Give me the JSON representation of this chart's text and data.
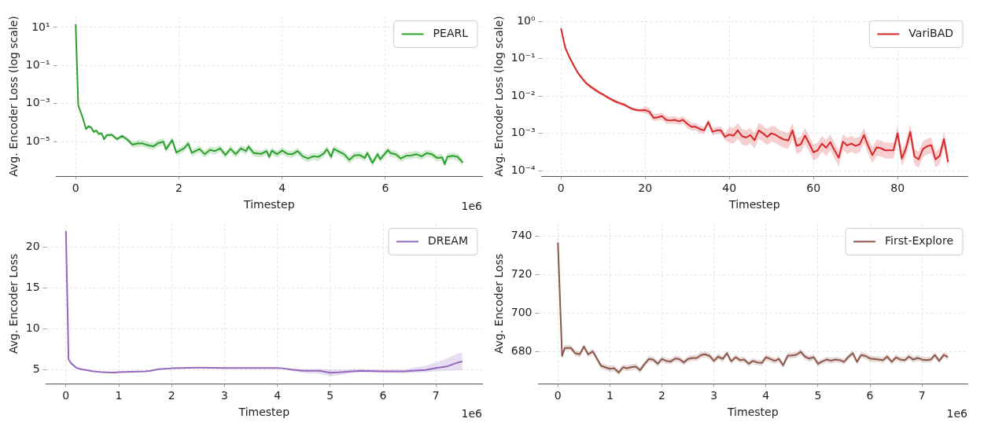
{
  "chart_data": [
    {
      "type": "line",
      "xlabel": "Timestep",
      "ylabel": "Avg. Encoder Loss (log scale)",
      "log": true,
      "grid": true,
      "legend": "top right",
      "annotations": [
        "1e6"
      ],
      "xlim": [
        -0.375,
        7.875
      ],
      "xticks": [
        0,
        2,
        4,
        6
      ],
      "ylim": [
        1.5e-07,
        40
      ],
      "yticks": [
        {
          "value": 1e-05,
          "label": "10⁻⁵"
        },
        {
          "value": 0.001,
          "label": "10⁻³"
        },
        {
          "value": 0.1,
          "label": "10⁻¹"
        },
        {
          "value": 10,
          "label": "10¹"
        }
      ],
      "x": [
        0,
        0.05,
        0.1,
        0.15,
        0.2,
        0.25,
        0.3,
        0.35,
        0.4,
        0.45,
        0.5,
        0.55,
        0.6,
        0.7,
        0.8,
        0.9,
        1.0,
        1.1,
        1.2,
        1.3,
        1.4,
        1.5,
        1.6,
        1.7,
        1.75,
        1.87,
        1.95,
        2.1,
        2.18,
        2.25,
        2.4,
        2.5,
        2.6,
        2.7,
        2.8,
        2.9,
        3.0,
        3.1,
        3.2,
        3.3,
        3.35,
        3.45,
        3.6,
        3.7,
        3.75,
        3.8,
        3.9,
        4.0,
        4.1,
        4.2,
        4.3,
        4.4,
        4.5,
        4.6,
        4.7,
        4.8,
        4.87,
        4.95,
        5.0,
        5.1,
        5.2,
        5.3,
        5.4,
        5.5,
        5.6,
        5.65,
        5.75,
        5.85,
        5.9,
        6.0,
        6.05,
        6.1,
        6.2,
        6.3,
        6.4,
        6.5,
        6.6,
        6.7,
        6.8,
        6.9,
        7.0,
        7.1,
        7.15,
        7.2,
        7.3,
        7.4,
        7.5
      ],
      "series": [
        {
          "name": "PEARL",
          "color": "#2ca02c",
          "values": [
            15,
            0.0008,
            0.00034,
            0.00014,
            4.6e-05,
            6.5e-05,
            5.5e-05,
            3.3e-05,
            3.8e-05,
            2.5e-05,
            2.8e-05,
            1.35e-05,
            2.2e-05,
            2.3e-05,
            1.35e-05,
            2e-05,
            1.3e-05,
            7e-06,
            8e-06,
            8e-06,
            6.5e-06,
            5.6e-06,
            8.4e-06,
            1e-05,
            4e-06,
            1.2e-05,
            2.7e-06,
            4.5e-06,
            8e-06,
            2.6e-06,
            4.1e-06,
            2.2e-06,
            3.7e-06,
            3.2e-06,
            4.4e-06,
            2e-06,
            4.2e-06,
            2.2e-06,
            4.4e-06,
            3.2e-06,
            5.5e-06,
            2.5e-06,
            2.3e-06,
            3.2e-06,
            1.6e-06,
            3.4e-06,
            2.2e-06,
            3.4e-06,
            2.3e-06,
            2.2e-06,
            3.2e-06,
            1.7e-06,
            1.3e-06,
            1.7e-06,
            1.6e-06,
            2.3e-06,
            4e-06,
            1.6e-06,
            4.2e-06,
            3e-06,
            2.2e-06,
            1.1e-06,
            1.9e-06,
            2e-06,
            1.4e-06,
            2.5e-06,
            7.7e-07,
            2.2e-06,
            1.2e-06,
            2.5e-06,
            3.6e-06,
            2.5e-06,
            2.2e-06,
            1.3e-06,
            1.8e-06,
            1.9e-06,
            2.2e-06,
            1.7e-06,
            2.5e-06,
            2.2e-06,
            1.4e-06,
            1.5e-06,
            6.6e-07,
            1.6e-06,
            1.8e-06,
            1.6e-06,
            8e-07
          ],
          "lower": [
            14,
            0.0007,
            0.00028,
            0.00011,
            3.6e-05,
            5.2e-05,
            4.4e-05,
            2.6e-05,
            3e-05,
            2e-05,
            2.2e-05,
            1.05e-05,
            1.7e-05,
            1.8e-05,
            1.05e-05,
            1.5e-05,
            9.5e-06,
            4.8e-06,
            5.4e-06,
            5.4e-06,
            4.3e-06,
            3.7e-06,
            5.5e-06,
            6.5e-06,
            2.6e-06,
            7.8e-06,
            1.8e-06,
            2.9e-06,
            5.2e-06,
            1.7e-06,
            2.7e-06,
            1.4e-06,
            2.4e-06,
            2.1e-06,
            2.9e-06,
            1.3e-06,
            2.7e-06,
            1.4e-06,
            2.9e-06,
            2.1e-06,
            3.6e-06,
            1.6e-06,
            1.5e-06,
            2.1e-06,
            1e-06,
            2.2e-06,
            1.4e-06,
            2.2e-06,
            1.5e-06,
            1.4e-06,
            2.1e-06,
            1.1e-06,
            8.5e-07,
            1.1e-06,
            1e-06,
            1.5e-06,
            2.6e-06,
            1e-06,
            2.7e-06,
            2e-06,
            1.4e-06,
            7e-07,
            1.2e-06,
            1.3e-06,
            9e-07,
            1.6e-06,
            5e-07,
            1.4e-06,
            7.8e-07,
            1.6e-06,
            2.3e-06,
            1.6e-06,
            1.4e-06,
            8.5e-07,
            1.2e-06,
            1.2e-06,
            1.4e-06,
            1.1e-06,
            1.6e-06,
            1.4e-06,
            9e-07,
            1e-06,
            4.3e-07,
            1e-06,
            1.2e-06,
            1e-06,
            5.2e-07
          ],
          "upper": [
            16,
            0.0009,
            0.0004,
            0.00017,
            5.6e-05,
            8e-05,
            6.6e-05,
            4e-05,
            4.6e-05,
            3e-05,
            3.4e-05,
            1.7e-05,
            2.7e-05,
            2.8e-05,
            1.7e-05,
            2.5e-05,
            1.8e-05,
            1e-05,
            1.2e-05,
            1.2e-05,
            9.8e-06,
            8.4e-06,
            1.26e-05,
            1.5e-05,
            6e-06,
            1.8e-05,
            4e-06,
            6.8e-06,
            1.2e-05,
            3.9e-06,
            6.2e-06,
            3.3e-06,
            5.6e-06,
            4.8e-06,
            6.6e-06,
            3e-06,
            6.3e-06,
            3.3e-06,
            6.6e-06,
            4.8e-06,
            8.2e-06,
            3.8e-06,
            3.5e-06,
            4.8e-06,
            2.4e-06,
            5.1e-06,
            3.3e-06,
            5.1e-06,
            3.5e-06,
            3.3e-06,
            4.8e-06,
            2.6e-06,
            2e-06,
            2.6e-06,
            2.4e-06,
            3.5e-06,
            6e-06,
            2.4e-06,
            6.3e-06,
            4.5e-06,
            3.3e-06,
            1.7e-06,
            2.9e-06,
            3e-06,
            2.1e-06,
            3.8e-06,
            1.2e-06,
            3.3e-06,
            1.8e-06,
            3.8e-06,
            5.4e-06,
            3.8e-06,
            3.3e-06,
            2e-06,
            2.7e-06,
            2.9e-06,
            3.3e-06,
            2.6e-06,
            3.8e-06,
            3.3e-06,
            2.1e-06,
            2.3e-06,
            1e-06,
            2.4e-06,
            2.7e-06,
            2.4e-06,
            1.2e-06
          ]
        }
      ]
    },
    {
      "type": "line",
      "xlabel": "Timestep",
      "ylabel": "Avg. Encoder Loss (log scale)",
      "log": true,
      "grid": true,
      "legend": "top right",
      "xlim": [
        -4.6,
        96.6
      ],
      "xticks": [
        0,
        20,
        40,
        60,
        80
      ],
      "ylim": [
        7e-05,
        1.4
      ],
      "yticks": [
        {
          "value": 0.0001,
          "label": "10⁻⁴"
        },
        {
          "value": 0.001,
          "label": "10⁻³"
        },
        {
          "value": 0.01,
          "label": "10⁻²"
        },
        {
          "value": 0.1,
          "label": "10⁻¹"
        },
        {
          "value": 1,
          "label": "10⁰"
        }
      ],
      "x": [
        0,
        1,
        2,
        3,
        4,
        5,
        6,
        7,
        8,
        9,
        10,
        11,
        12,
        13,
        14,
        15,
        16,
        17,
        18,
        19,
        20,
        21,
        22,
        23,
        24,
        25,
        26,
        27,
        28,
        29,
        30,
        31,
        32,
        33,
        34,
        35,
        36,
        37,
        38,
        39,
        40,
        41,
        42,
        43,
        44,
        45,
        46,
        47,
        48,
        49,
        50,
        51,
        52,
        53,
        54,
        55,
        56,
        57,
        58,
        59,
        60,
        61,
        62,
        63,
        64,
        65,
        66,
        67,
        68,
        69,
        70,
        71,
        72,
        73,
        74,
        75,
        76,
        77,
        78,
        79,
        80,
        81,
        82,
        83,
        84,
        85,
        86,
        87,
        88,
        89,
        90,
        91,
        92
      ],
      "series": [
        {
          "name": "VariBAD",
          "color": "#d62728",
          "values": [
            0.66,
            0.2,
            0.11,
            0.067,
            0.042,
            0.03,
            0.022,
            0.018,
            0.015,
            0.0126,
            0.011,
            0.0093,
            0.0081,
            0.0071,
            0.0064,
            0.0059,
            0.0051,
            0.0045,
            0.0042,
            0.0041,
            0.0042,
            0.0038,
            0.0026,
            0.0027,
            0.0029,
            0.0023,
            0.0022,
            0.0023,
            0.0021,
            0.0023,
            0.0018,
            0.0015,
            0.0015,
            0.0013,
            0.0012,
            0.002,
            0.0011,
            0.0012,
            0.0012,
            0.0008,
            0.00093,
            0.00086,
            0.0012,
            0.00084,
            0.00077,
            0.0009,
            0.00065,
            0.0012,
            0.001,
            0.0008,
            0.001,
            0.00091,
            0.00077,
            0.00068,
            0.00064,
            0.0012,
            0.00046,
            0.00051,
            0.00087,
            0.00053,
            0.00031,
            0.00035,
            0.00053,
            0.00041,
            0.00058,
            0.00035,
            0.00022,
            0.0006,
            0.00047,
            0.00053,
            0.00046,
            0.00051,
            0.0009,
            0.00046,
            0.00026,
            0.00042,
            0.0004,
            0.00035,
            0.00035,
            0.00035,
            0.001,
            0.00021,
            0.0004,
            0.0011,
            0.00024,
            0.0002,
            0.00038,
            0.00045,
            0.00048,
            0.0002,
            0.00025,
            0.0007,
            0.00017
          ],
          "lower": [
            0.6,
            0.18,
            0.1,
            0.06,
            0.038,
            0.027,
            0.02,
            0.016,
            0.0135,
            0.0113,
            0.0099,
            0.0084,
            0.0073,
            0.0064,
            0.0058,
            0.0053,
            0.0046,
            0.004,
            0.0038,
            0.0037,
            0.0034,
            0.003,
            0.0021,
            0.0022,
            0.0023,
            0.0018,
            0.0018,
            0.0018,
            0.0017,
            0.0018,
            0.0014,
            0.0012,
            0.0012,
            0.001,
            0.00096,
            0.0016,
            0.00088,
            0.00096,
            0.00096,
            0.00064,
            0.00056,
            0.00052,
            0.00072,
            0.0005,
            0.00046,
            0.00054,
            0.00039,
            0.00072,
            0.0006,
            0.00048,
            0.0006,
            0.00055,
            0.00046,
            0.00041,
            0.00038,
            0.00072,
            0.00028,
            0.00031,
            0.00052,
            0.00032,
            0.00019,
            0.00021,
            0.00032,
            0.00025,
            0.00035,
            0.00021,
            0.00013,
            0.00036,
            0.00028,
            0.00032,
            0.00028,
            0.00031,
            0.00054,
            0.00028,
            0.00016,
            0.00025,
            0.00024,
            0.00021,
            0.00021,
            0.00021,
            0.0006,
            0.00013,
            0.00024,
            0.00066,
            0.00014,
            0.00012,
            0.00023,
            0.00027,
            0.00029,
            0.00012,
            0.00015,
            0.00042,
            0.0001
          ],
          "upper": [
            0.74,
            0.22,
            0.12,
            0.075,
            0.047,
            0.034,
            0.025,
            0.02,
            0.017,
            0.014,
            0.012,
            0.0104,
            0.0091,
            0.008,
            0.0072,
            0.0066,
            0.0057,
            0.005,
            0.0047,
            0.0046,
            0.0053,
            0.0048,
            0.0033,
            0.0034,
            0.0036,
            0.0029,
            0.0028,
            0.0029,
            0.0026,
            0.0029,
            0.0023,
            0.0019,
            0.0019,
            0.0016,
            0.0015,
            0.0025,
            0.0014,
            0.0015,
            0.0015,
            0.001,
            0.0015,
            0.0014,
            0.0019,
            0.0013,
            0.0012,
            0.0014,
            0.001,
            0.0019,
            0.0016,
            0.0013,
            0.0016,
            0.0015,
            0.0012,
            0.0011,
            0.001,
            0.0019,
            0.00074,
            0.00082,
            0.0014,
            0.00085,
            0.0005,
            0.00056,
            0.00085,
            0.00066,
            0.00093,
            0.00056,
            0.00035,
            0.00096,
            0.00075,
            0.00085,
            0.00074,
            0.00082,
            0.0014,
            0.00074,
            0.00042,
            0.00067,
            0.00064,
            0.00056,
            0.00056,
            0.00056,
            0.0016,
            0.00034,
            0.00064,
            0.0018,
            0.00038,
            0.00032,
            0.00061,
            0.00072,
            0.00077,
            0.00032,
            0.0004,
            0.0011,
            0.00027
          ]
        }
      ]
    },
    {
      "type": "line",
      "xlabel": "Timestep",
      "ylabel": "Avg. Encoder Loss",
      "grid": true,
      "legend": "top right",
      "annotations": [
        "1e6"
      ],
      "xlim": [
        -0.375,
        7.875
      ],
      "xticks": [
        0,
        1,
        2,
        3,
        4,
        5,
        6,
        7
      ],
      "ylim": [
        3.3,
        22.9
      ],
      "yticks": [
        5,
        10,
        15,
        20
      ],
      "x": [
        0,
        0.05,
        0.1,
        0.2,
        0.3,
        0.4,
        0.5,
        0.7,
        0.9,
        1.0,
        1.2,
        1.5,
        1.6,
        1.75,
        2.0,
        2.5,
        3.0,
        3.5,
        4.0,
        4.1,
        4.3,
        4.5,
        4.8,
        5.0,
        5.2,
        5.4,
        5.6,
        6.0,
        6.4,
        6.6,
        6.8,
        7.0,
        7.2,
        7.4,
        7.5
      ],
      "series": [
        {
          "name": "DREAM",
          "color": "#9467bd",
          "values": [
            22.0,
            6.3,
            5.8,
            5.25,
            5.07,
            4.97,
            4.86,
            4.72,
            4.69,
            4.72,
            4.79,
            4.83,
            4.9,
            5.1,
            5.2,
            5.28,
            5.24,
            5.24,
            5.24,
            5.2,
            5.03,
            4.9,
            4.9,
            4.65,
            4.72,
            4.83,
            4.9,
            4.83,
            4.83,
            4.93,
            5.0,
            5.24,
            5.42,
            5.87,
            6.05
          ],
          "lower": [
            21.9,
            6.2,
            5.75,
            5.2,
            5.02,
            4.92,
            4.81,
            4.67,
            4.64,
            4.67,
            4.74,
            4.78,
            4.85,
            5.05,
            5.15,
            5.23,
            5.19,
            5.19,
            5.19,
            5.15,
            4.85,
            4.6,
            4.55,
            4.2,
            4.4,
            4.6,
            4.7,
            4.65,
            4.6,
            4.65,
            4.7,
            4.85,
            4.9,
            4.95,
            4.97
          ],
          "upper": [
            22.1,
            6.4,
            5.85,
            5.3,
            5.12,
            5.02,
            4.91,
            4.77,
            4.74,
            4.77,
            4.84,
            4.88,
            4.95,
            5.15,
            5.25,
            5.33,
            5.29,
            5.29,
            5.29,
            5.25,
            5.15,
            5.1,
            5.15,
            5.07,
            5.05,
            5.1,
            5.1,
            5.05,
            5.05,
            5.3,
            5.5,
            5.94,
            6.4,
            7.0,
            7.16
          ]
        }
      ]
    },
    {
      "type": "line",
      "xlabel": "Timestep",
      "ylabel": "Avg. Encoder Loss",
      "grid": true,
      "legend": "top right",
      "annotations": [
        "1e6"
      ],
      "xlim": [
        -0.375,
        7.875
      ],
      "xticks": [
        0,
        1,
        2,
        3,
        4,
        5,
        6,
        7
      ],
      "ylim": [
        663.5,
        746.5
      ],
      "yticks": [
        680,
        700,
        720,
        740
      ],
      "x": [
        0,
        0.08,
        0.13,
        0.25,
        0.33,
        0.42,
        0.5,
        0.58,
        0.67,
        0.83,
        1.0,
        1.08,
        1.17,
        1.25,
        1.33,
        1.42,
        1.5,
        1.58,
        1.67,
        1.75,
        1.83,
        1.92,
        2.0,
        2.08,
        2.17,
        2.25,
        2.33,
        2.42,
        2.5,
        2.58,
        2.67,
        2.75,
        2.83,
        2.92,
        3.0,
        3.08,
        3.17,
        3.25,
        3.33,
        3.42,
        3.5,
        3.58,
        3.67,
        3.75,
        3.83,
        3.92,
        4.0,
        4.08,
        4.17,
        4.25,
        4.33,
        4.42,
        4.5,
        4.58,
        4.67,
        4.75,
        4.83,
        4.92,
        5.0,
        5.08,
        5.17,
        5.25,
        5.33,
        5.42,
        5.5,
        5.58,
        5.67,
        5.75,
        5.83,
        5.92,
        6.0,
        6.08,
        6.17,
        6.25,
        6.33,
        6.42,
        6.5,
        6.58,
        6.67,
        6.75,
        6.83,
        6.92,
        7.0,
        7.08,
        7.17,
        7.25,
        7.33,
        7.42,
        7.5
      ],
      "series": [
        {
          "name": "First-Explore",
          "color": "#8c564b",
          "values": [
            736.6,
            677.9,
            682.1,
            682.1,
            679.4,
            678.8,
            682.8,
            678.8,
            680.3,
            672.8,
            671.3,
            671.6,
            669.4,
            672.1,
            671.6,
            672.2,
            672.4,
            670.6,
            673.9,
            676.4,
            676.1,
            673.9,
            676.4,
            675.4,
            675.1,
            676.6,
            676.4,
            674.6,
            676.4,
            676.9,
            676.9,
            678.4,
            678.8,
            677.9,
            675.4,
            677.6,
            676.4,
            679.4,
            675.2,
            677.3,
            675.8,
            676.1,
            673.9,
            675.4,
            674.6,
            674.3,
            677.3,
            676.4,
            675.4,
            676.4,
            673.1,
            678.1,
            678.2,
            678.5,
            680.1,
            677.6,
            676.6,
            677.3,
            673.9,
            675.1,
            676.1,
            675.5,
            676.1,
            675.8,
            674.9,
            677.3,
            679.4,
            674.9,
            678.4,
            677.9,
            676.6,
            676.4,
            676.1,
            675.8,
            677.6,
            674.9,
            677.2,
            676.1,
            675.8,
            677.6,
            676.1,
            676.9,
            676.1,
            675.8,
            676.1,
            678.4,
            675.4,
            678.5,
            677.3
          ],
          "lower": [
            729,
            676.4,
            680.6,
            680.6,
            677.9,
            677.3,
            681.3,
            677.3,
            678.8,
            671.3,
            669.8,
            670.1,
            667.9,
            670.6,
            670.1,
            670.7,
            670.9,
            669.1,
            672.4,
            674.9,
            674.6,
            672.4,
            674.9,
            673.9,
            673.6,
            675.1,
            674.9,
            673.1,
            674.9,
            675.4,
            675.4,
            676.9,
            677.3,
            676.4,
            673.9,
            676.1,
            674.9,
            677.9,
            673.7,
            675.8,
            674.3,
            674.6,
            672.4,
            673.9,
            673.1,
            672.8,
            675.8,
            674.9,
            673.9,
            674.9,
            671.6,
            676.6,
            676.7,
            677,
            678.6,
            676.1,
            675.1,
            675.8,
            672.4,
            673.6,
            674.6,
            674,
            674.6,
            674.3,
            673.4,
            675.8,
            677.9,
            673.4,
            676.9,
            676.4,
            675.1,
            674.9,
            674.6,
            674.3,
            676.1,
            673.4,
            675.7,
            674.6,
            674.3,
            676.1,
            674.6,
            675.4,
            674.6,
            674.3,
            674.6,
            676.9,
            673.9,
            677,
            675.8
          ],
          "upper": [
            744,
            679.4,
            683.6,
            683.6,
            680.9,
            680.3,
            684.3,
            680.3,
            681.8,
            674.3,
            672.8,
            673.1,
            670.9,
            673.6,
            673.1,
            673.7,
            673.9,
            672.1,
            675.4,
            677.9,
            677.6,
            675.4,
            677.9,
            676.9,
            676.6,
            678.1,
            677.9,
            676.1,
            677.9,
            678.4,
            678.4,
            679.9,
            680.3,
            679.4,
            676.9,
            679.1,
            677.9,
            680.9,
            676.7,
            678.8,
            677.3,
            677.6,
            675.4,
            676.9,
            676.1,
            675.8,
            678.8,
            677.9,
            676.9,
            677.9,
            674.6,
            679.6,
            679.7,
            680,
            681.6,
            679.1,
            678.1,
            678.8,
            675.4,
            676.6,
            677.6,
            677,
            677.6,
            677.3,
            676.4,
            678.8,
            680.9,
            676.4,
            679.9,
            679.4,
            678.1,
            677.9,
            677.6,
            677.3,
            679.1,
            676.4,
            678.7,
            677.6,
            677.3,
            679.1,
            677.6,
            678.4,
            677.6,
            677.3,
            677.6,
            679.9,
            676.9,
            680,
            678.8
          ]
        }
      ]
    }
  ]
}
